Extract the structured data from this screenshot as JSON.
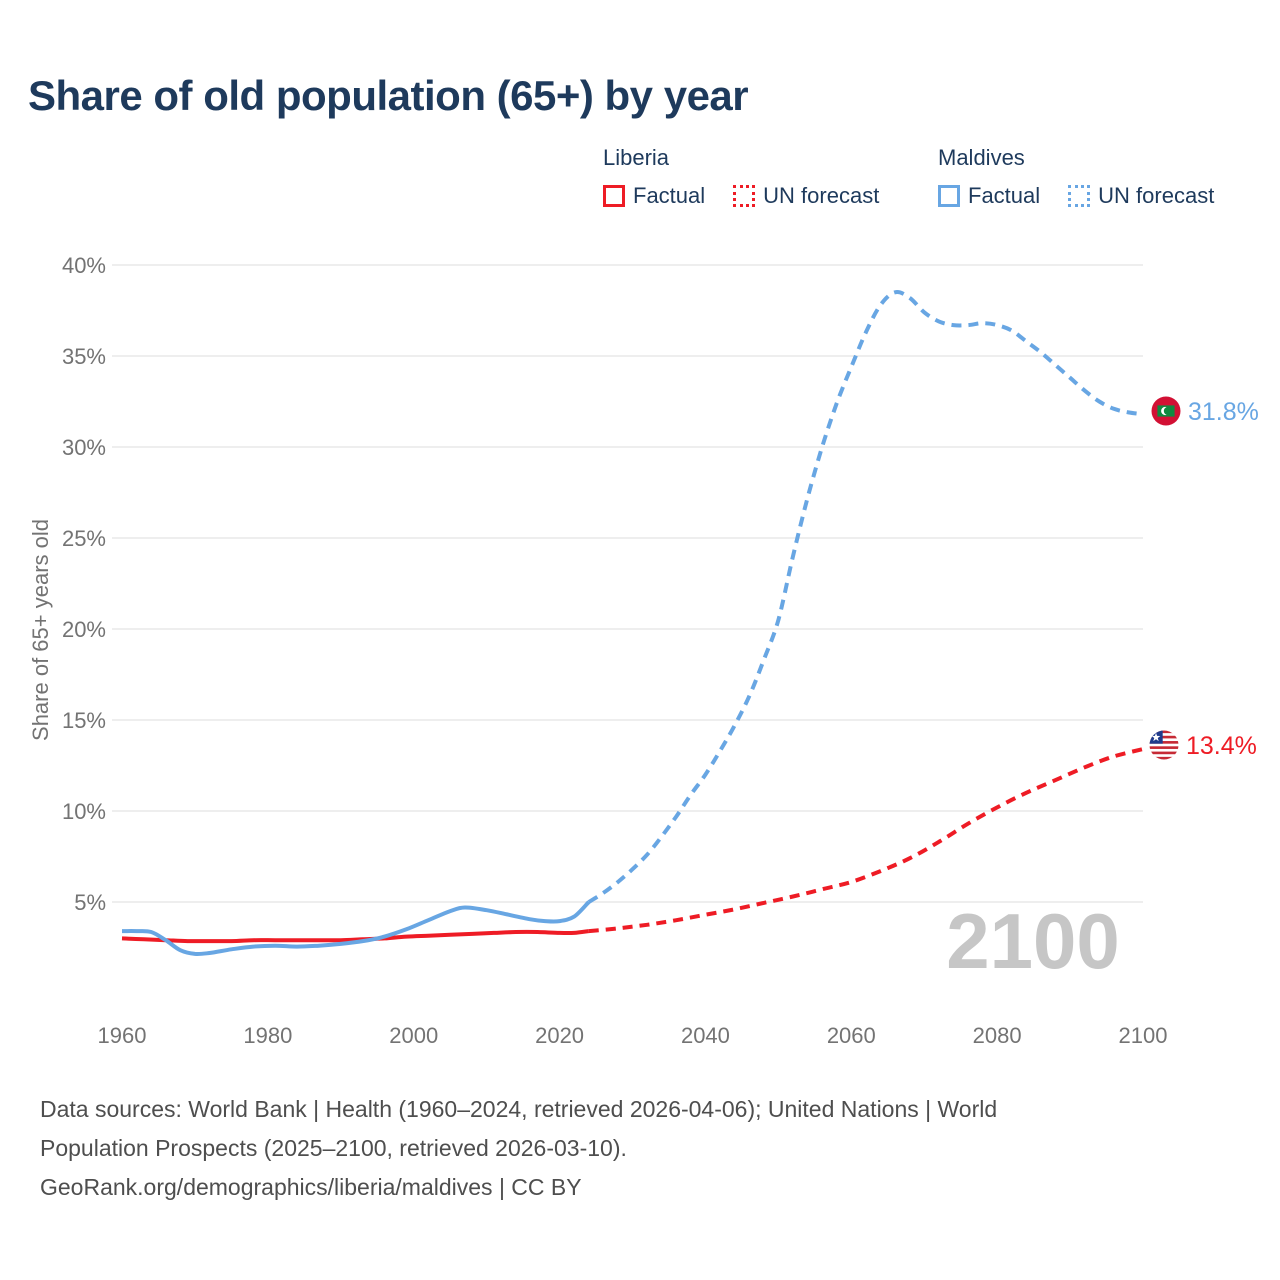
{
  "header": {
    "title": "Share of old population (65+) by year"
  },
  "legend": {
    "groups": [
      {
        "country": "Liberia",
        "color": "#ee1c25",
        "factual_label": "Factual",
        "forecast_label": "UN forecast"
      },
      {
        "country": "Maldives",
        "color": "#68a6e3",
        "factual_label": "Factual",
        "forecast_label": "UN forecast"
      }
    ]
  },
  "chart_data": {
    "type": "line",
    "title": "Share of old population (65+) by year",
    "ylabel": "Share of 65+ years old",
    "xlabel": "",
    "ylim": [
      0,
      40
    ],
    "xlim": [
      1958,
      2103
    ],
    "grid": "horizontal",
    "legend_position": "top-right",
    "watermark": "2100",
    "yticks": [
      {
        "value": 5,
        "label": "5%"
      },
      {
        "value": 10,
        "label": "10%"
      },
      {
        "value": 15,
        "label": "15%"
      },
      {
        "value": 20,
        "label": "20%"
      },
      {
        "value": 25,
        "label": "25%"
      },
      {
        "value": 30,
        "label": "30%"
      },
      {
        "value": 35,
        "label": "35%"
      },
      {
        "value": 40,
        "label": "40%"
      }
    ],
    "xticks": [
      {
        "value": 1960,
        "label": "1960"
      },
      {
        "value": 1980,
        "label": "1980"
      },
      {
        "value": 2000,
        "label": "2000"
      },
      {
        "value": 2020,
        "label": "2020"
      },
      {
        "value": 2040,
        "label": "2040"
      },
      {
        "value": 2060,
        "label": "2060"
      },
      {
        "value": 2080,
        "label": "2080"
      },
      {
        "value": 2100,
        "label": "2100"
      }
    ],
    "series": [
      {
        "name": "Liberia Factual",
        "color": "#ee1c25",
        "dashed": false,
        "points": [
          [
            1960,
            3.0
          ],
          [
            1963,
            2.95
          ],
          [
            1966,
            2.9
          ],
          [
            1969,
            2.85
          ],
          [
            1972,
            2.85
          ],
          [
            1975,
            2.85
          ],
          [
            1978,
            2.9
          ],
          [
            1981,
            2.9
          ],
          [
            1984,
            2.9
          ],
          [
            1987,
            2.9
          ],
          [
            1990,
            2.9
          ],
          [
            1993,
            2.95
          ],
          [
            1996,
            3.0
          ],
          [
            1999,
            3.1
          ],
          [
            2002,
            3.15
          ],
          [
            2005,
            3.2
          ],
          [
            2008,
            3.25
          ],
          [
            2011,
            3.3
          ],
          [
            2014,
            3.35
          ],
          [
            2017,
            3.35
          ],
          [
            2020,
            3.3
          ],
          [
            2022,
            3.3
          ],
          [
            2024,
            3.4
          ]
        ]
      },
      {
        "name": "Liberia UN forecast",
        "color": "#ee1c25",
        "dashed": true,
        "points": [
          [
            2024,
            3.4
          ],
          [
            2028,
            3.55
          ],
          [
            2032,
            3.75
          ],
          [
            2036,
            4.0
          ],
          [
            2040,
            4.3
          ],
          [
            2044,
            4.6
          ],
          [
            2048,
            4.95
          ],
          [
            2052,
            5.3
          ],
          [
            2056,
            5.7
          ],
          [
            2060,
            6.1
          ],
          [
            2064,
            6.7
          ],
          [
            2068,
            7.4
          ],
          [
            2072,
            8.3
          ],
          [
            2076,
            9.3
          ],
          [
            2080,
            10.2
          ],
          [
            2084,
            11.0
          ],
          [
            2088,
            11.7
          ],
          [
            2092,
            12.4
          ],
          [
            2096,
            13.0
          ],
          [
            2100,
            13.4
          ]
        ]
      },
      {
        "name": "Maldives Factual",
        "color": "#68a6e3",
        "dashed": false,
        "points": [
          [
            1960,
            3.4
          ],
          [
            1962,
            3.4
          ],
          [
            1964,
            3.35
          ],
          [
            1966,
            2.9
          ],
          [
            1968,
            2.35
          ],
          [
            1970,
            2.15
          ],
          [
            1972,
            2.2
          ],
          [
            1975,
            2.4
          ],
          [
            1978,
            2.55
          ],
          [
            1981,
            2.6
          ],
          [
            1984,
            2.55
          ],
          [
            1987,
            2.6
          ],
          [
            1990,
            2.7
          ],
          [
            1993,
            2.85
          ],
          [
            1996,
            3.1
          ],
          [
            1999,
            3.5
          ],
          [
            2002,
            4.0
          ],
          [
            2005,
            4.5
          ],
          [
            2007,
            4.7
          ],
          [
            2010,
            4.55
          ],
          [
            2013,
            4.3
          ],
          [
            2016,
            4.05
          ],
          [
            2018,
            3.95
          ],
          [
            2020,
            3.95
          ],
          [
            2022,
            4.2
          ],
          [
            2024,
            5.0
          ]
        ]
      },
      {
        "name": "Maldives UN forecast",
        "color": "#68a6e3",
        "dashed": true,
        "points": [
          [
            2024,
            5.0
          ],
          [
            2026,
            5.5
          ],
          [
            2028,
            6.1
          ],
          [
            2030,
            6.8
          ],
          [
            2032,
            7.6
          ],
          [
            2034,
            8.6
          ],
          [
            2036,
            9.7
          ],
          [
            2038,
            10.9
          ],
          [
            2040,
            12.0
          ],
          [
            2042,
            13.3
          ],
          [
            2044,
            14.7
          ],
          [
            2046,
            16.3
          ],
          [
            2048,
            18.3
          ],
          [
            2050,
            20.5
          ],
          [
            2052,
            24.0
          ],
          [
            2054,
            27.2
          ],
          [
            2056,
            30.0
          ],
          [
            2058,
            32.4
          ],
          [
            2060,
            34.4
          ],
          [
            2062,
            36.3
          ],
          [
            2064,
            37.8
          ],
          [
            2066,
            38.5
          ],
          [
            2068,
            38.2
          ],
          [
            2070,
            37.4
          ],
          [
            2072,
            36.9
          ],
          [
            2074,
            36.7
          ],
          [
            2076,
            36.7
          ],
          [
            2078,
            36.8
          ],
          [
            2080,
            36.7
          ],
          [
            2082,
            36.4
          ],
          [
            2084,
            35.8
          ],
          [
            2086,
            35.2
          ],
          [
            2088,
            34.5
          ],
          [
            2090,
            33.8
          ],
          [
            2092,
            33.1
          ],
          [
            2094,
            32.5
          ],
          [
            2096,
            32.1
          ],
          [
            2098,
            31.9
          ],
          [
            2100,
            31.8
          ]
        ]
      }
    ],
    "end_labels": [
      {
        "series": "Maldives",
        "label": "31.8%",
        "value": 31.8,
        "color": "#68a6e3",
        "flag": "maldives"
      },
      {
        "series": "Liberia",
        "label": "13.4%",
        "value": 13.4,
        "color": "#ee1c25",
        "flag": "liberia"
      }
    ]
  },
  "footer": {
    "lines": [
      "Data sources: World Bank | Health (1960–2024, retrieved 2026-04-06); United Nations | World",
      "Population Prospects (2025–2100, retrieved 2026-03-10).",
      "GeoRank.org/demographics/liberia/maldives | CC BY"
    ]
  },
  "colors": {
    "liberia": "#ee1c25",
    "maldives": "#68a6e3",
    "title_text": "#1e3a5c",
    "axis_text": "#737373",
    "gridline": "#e9e9e9",
    "watermark": "#c6c6c6",
    "footer_text": "#4e4e4e"
  }
}
